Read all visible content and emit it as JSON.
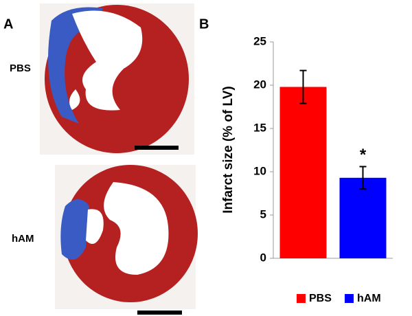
{
  "panel_a": {
    "label": "A",
    "images": [
      {
        "label": "PBS"
      },
      {
        "label": "hAM"
      }
    ]
  },
  "chart_data": {
    "type": "bar",
    "panel_label": "B",
    "ylabel": "Infarct size (% of LV)",
    "series": [
      {
        "name": "PBS",
        "color": "#ff0000",
        "values": [
          19.8
        ],
        "errors": [
          1.9
        ]
      },
      {
        "name": "hAM",
        "color": "#0000ff",
        "values": [
          9.3
        ],
        "errors": [
          1.3
        ]
      }
    ],
    "annotations": [
      {
        "text": "*",
        "series": 1
      }
    ],
    "ylim": [
      0,
      25
    ],
    "yticks": [
      0,
      5,
      10,
      15,
      20,
      25
    ],
    "legend": "bottom"
  }
}
